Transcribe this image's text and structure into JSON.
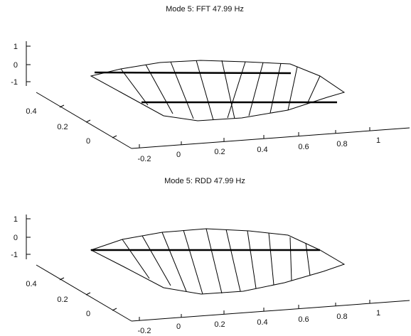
{
  "chart_data": [
    {
      "type": "surface-3d-wireframe",
      "title": "Mode 5: FFT 47.99 Hz",
      "x_ticks": [
        "-0.2",
        "0",
        "0.2",
        "0.4",
        "0.6",
        "0.8",
        "1"
      ],
      "y_ticks": [
        "0",
        "0.2",
        "0.4"
      ],
      "z_ticks": [
        "1",
        "0",
        "-1"
      ],
      "xlim": [
        -0.2,
        1.05
      ],
      "ylim": [
        0,
        0.5
      ],
      "zlim": [
        -1,
        1
      ],
      "grid": false,
      "mode_lines": 2
    },
    {
      "type": "surface-3d-wireframe",
      "title": "Mode 5: RDD 47.99 Hz",
      "x_ticks": [
        "-0.2",
        "0",
        "0.2",
        "0.4",
        "0.6",
        "0.8",
        "1"
      ],
      "y_ticks": [
        "0",
        "0.2",
        "0.4"
      ],
      "z_ticks": [
        "1",
        "0",
        "-1"
      ],
      "xlim": [
        -0.2,
        1.05
      ],
      "ylim": [
        0,
        0.5
      ],
      "zlim": [
        -1,
        1
      ],
      "grid": false,
      "mode_lines": 1
    }
  ]
}
